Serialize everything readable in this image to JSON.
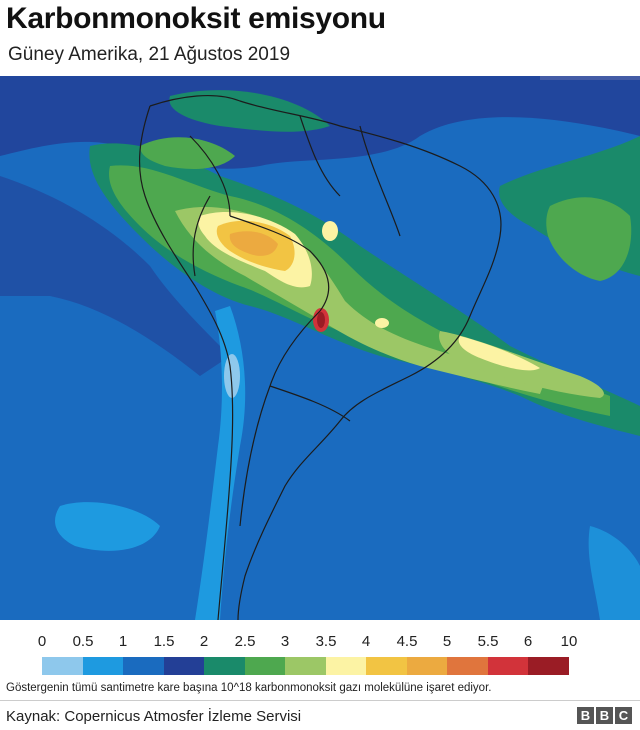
{
  "header": {
    "title": "Karbonmonoksit emisyonu",
    "subtitle": "Güney Amerika, 21 Ağustos 2019"
  },
  "legend": {
    "labels": [
      "0",
      "0.5",
      "1",
      "1.5",
      "2",
      "2.5",
      "3",
      "3.5",
      "4",
      "4.5",
      "5",
      "5.5",
      "6",
      "10"
    ],
    "colors": [
      "#8ec8ec",
      "#1e9ae0",
      "#1a6bbf",
      "#233f96",
      "#1a8a6a",
      "#4ea84f",
      "#9cc766",
      "#fcf3a4",
      "#f2c443",
      "#ecaa40",
      "#e0753d",
      "#d2333a",
      "#9a1c25",
      "#5a1818"
    ],
    "note": "Göstergenin tümü santimetre kare başına 10^18 karbonmonoksit gazı molekülüne işaret ediyor."
  },
  "footer": {
    "source": "Kaynak: Copernicus Atmosfer İzleme Servisi",
    "logo_letters": [
      "B",
      "B",
      "C"
    ]
  },
  "map": {
    "colors": {
      "ocean_base": "#1a6bbf",
      "low_blue": "#1e9ae0",
      "very_low": "#8ec8ec",
      "dark_blue": "#233f96",
      "teal": "#1a8a6a",
      "green": "#4ea84f",
      "light_green": "#9cc766",
      "pale_yellow": "#fcf3a4",
      "yellow": "#f2c443",
      "orange": "#ecaa40",
      "red": "#d2333a",
      "dark_red": "#9a1c25",
      "border": "#1c1c1c"
    }
  }
}
